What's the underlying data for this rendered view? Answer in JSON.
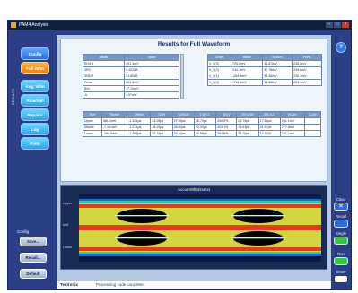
{
  "window": {
    "title": "PAM4 Analysis"
  },
  "side_label": "RESULTS",
  "nav": [
    "Config",
    "Full Wfm",
    "Avg. Wfm",
    "Rise/Fall",
    "Repairs",
    "Log",
    "Prefs"
  ],
  "config": {
    "label": "Config",
    "save": "Save...",
    "recall": "Recall...",
    "default": "Default"
  },
  "results": {
    "title": "Results for Full Waveform",
    "meas_table": {
      "headers": [
        "Meas",
        "Value"
      ],
      "rows": [
        [
          "EH4.5",
          "291.1mV"
        ],
        [
          "VEC",
          "5.422dB"
        ],
        [
          "SNDR",
          "31.69dB"
        ],
        [
          "Pmax",
          "683.8mV"
        ],
        [
          "Rm",
          "17.22mV"
        ],
        [
          "Jt",
          "3.97mV"
        ]
      ]
    },
    "level_table": {
      "headers": [
        "Level",
        "Mean",
        "StdDev",
        "PkPk"
      ],
      "rows": [
        [
          "V_0(3)",
          "725.8mV",
          "34.87mV",
          "228.6mV"
        ],
        [
          "V_0(2)",
          "240.1mV",
          "37.76mV",
          "239.8mV"
        ],
        [
          "V_0(1)",
          "-254.9mV",
          "34.38mV",
          "230.1mV"
        ],
        [
          "V_0(0)",
          "-716.4mV",
          "33.56mV",
          "221.1mV"
        ]
      ]
    },
    "eye_table": {
      "headers": [
        "Eye",
        "Thresh",
        "Offset",
        "T-EH",
        "T-EH-M",
        "T-EH-L",
        "EH-V",
        "EH-V-M",
        "EH-V-L",
        "H-Lev",
        "L-Lev"
      ],
      "rows": [
        [
          "Upper",
          "481.2mV",
          "-1.101ps",
          "24.05ps",
          "27.09ps",
          "28.72ps",
          "200.3%",
          "22.75pk",
          "17.84pk",
          "291.1mV",
          ""
        ],
        [
          "Middle",
          "-7.161mV",
          "-1.231ps",
          "18.15ps",
          "28.60ps",
          "22.33ps",
          "400.1%",
          "15.43pk",
          "21.57pk",
          "277.8mV",
          ""
        ],
        [
          "Lower",
          "-484.0mV",
          "-1.806ps",
          "28.19ps",
          "29.40ps",
          "29.69ps",
          "364.6%",
          "23.20pk",
          "14.82pk",
          "261.1mV",
          ""
        ]
      ]
    }
  },
  "eye_diagram": {
    "title": "AccumWfmDat.txt",
    "y_labels": [
      "Upper",
      "Mid",
      "Lower"
    ]
  },
  "right_controls": {
    "clear": "Clear",
    "recall": "Recall",
    "single": "Single",
    "run": "Run",
    "show_plots": "Show Plots"
  },
  "status": {
    "brand": "Tektronix",
    "message": "Processing code complete."
  },
  "colors": {
    "accent": "#f08a1c",
    "panel": "#2a3f86",
    "button": "#3b86ec"
  }
}
